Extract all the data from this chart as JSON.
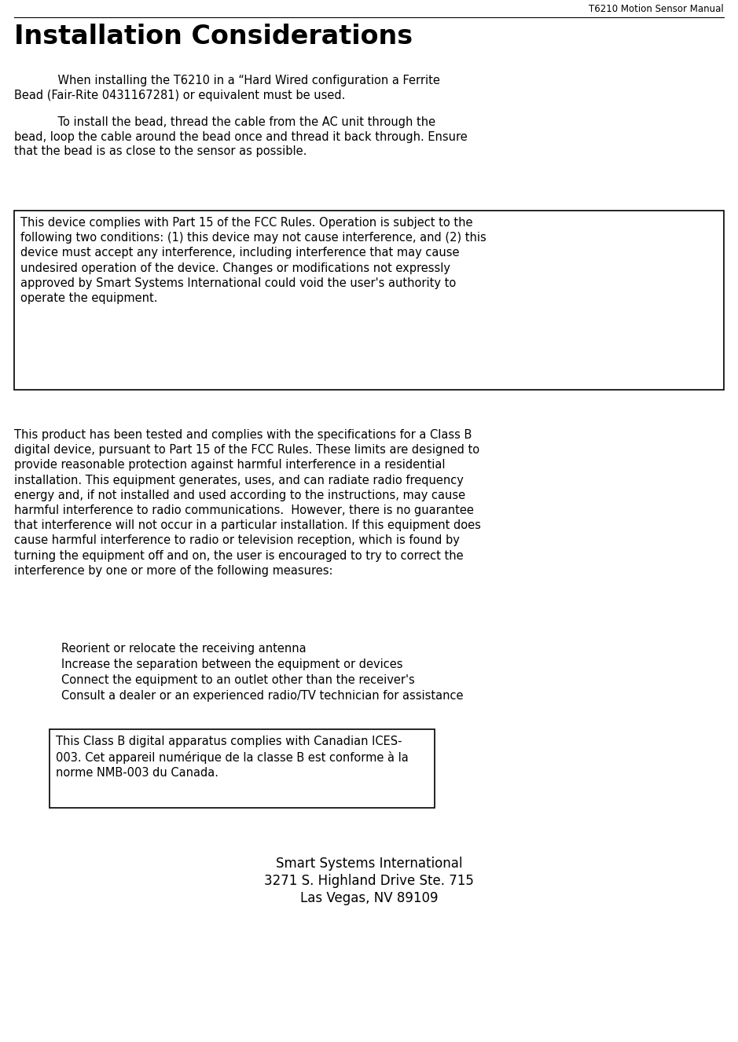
{
  "header_text": "T6210 Motion Sensor Manual",
  "title": "Installation Considerations",
  "para1a": "            When installing the T6210 in a “Hard Wired configuration a Ferrite\nBead (Fair-Rite 0431167281) or equivalent must be used.",
  "para1b": "            To install the bead, thread the cable from the AC unit through the\nbead, loop the cable around the bead once and thread it back through. Ensure\nthat the bead is as close to the sensor as possible​.",
  "box1_text": "This device complies with Part 15 of the FCC Rules. Operation is subject to the\nfollowing two conditions: (1) this device may not cause interference, and (2) this\ndevice must accept any interference, including interference that may cause\nundesired operation of the device. Changes or modifications not expressly\napproved by Smart Systems International could void the user's authority to\noperate the equipment.",
  "para2": "This product has been tested and complies with the specifications for a Class B\ndigital device, pursuant to Part 15 of the FCC Rules. These limits are designed to\nprovide reasonable protection against harmful interference in a residential\ninstallation. This equipment generates, uses, and can radiate radio frequency\nenergy and, if not installed and used according to the instructions, may cause\nharmful interference to radio communications.  However, there is no guarantee\nthat interference will not occur in a particular installation. If this equipment does\ncause harmful interference to radio or television reception, which is found by\nturning the equipment off and on, the user is encouraged to try to correct the\ninterference by one or more of the following measures:",
  "bullets": [
    "Reorient or relocate the receiving antenna",
    "Increase the separation between the equipment or devices",
    "Connect the equipment to an outlet other than the receiver's",
    "Consult a dealer or an experienced radio/TV technician for assistance"
  ],
  "box2_text": "This Class B digital apparatus complies with Canadian ICES-\n003. Cet appareil numérique de la classe B est conforme à la\nnorme NMB-003 du Canada.",
  "footer_line1": "Smart Systems International",
  "footer_line2": "3271 S. Highland Drive Ste. 715",
  "footer_line3": "Las Vegas, NV 89109",
  "bg_color": "#ffffff",
  "text_color": "#000000",
  "header_fontsize": 8.5,
  "title_fontsize": 24,
  "body_fontsize": 10.5,
  "footer_fontsize": 12,
  "fig_width": 9.39,
  "fig_height": 13.26,
  "dpi": 100
}
